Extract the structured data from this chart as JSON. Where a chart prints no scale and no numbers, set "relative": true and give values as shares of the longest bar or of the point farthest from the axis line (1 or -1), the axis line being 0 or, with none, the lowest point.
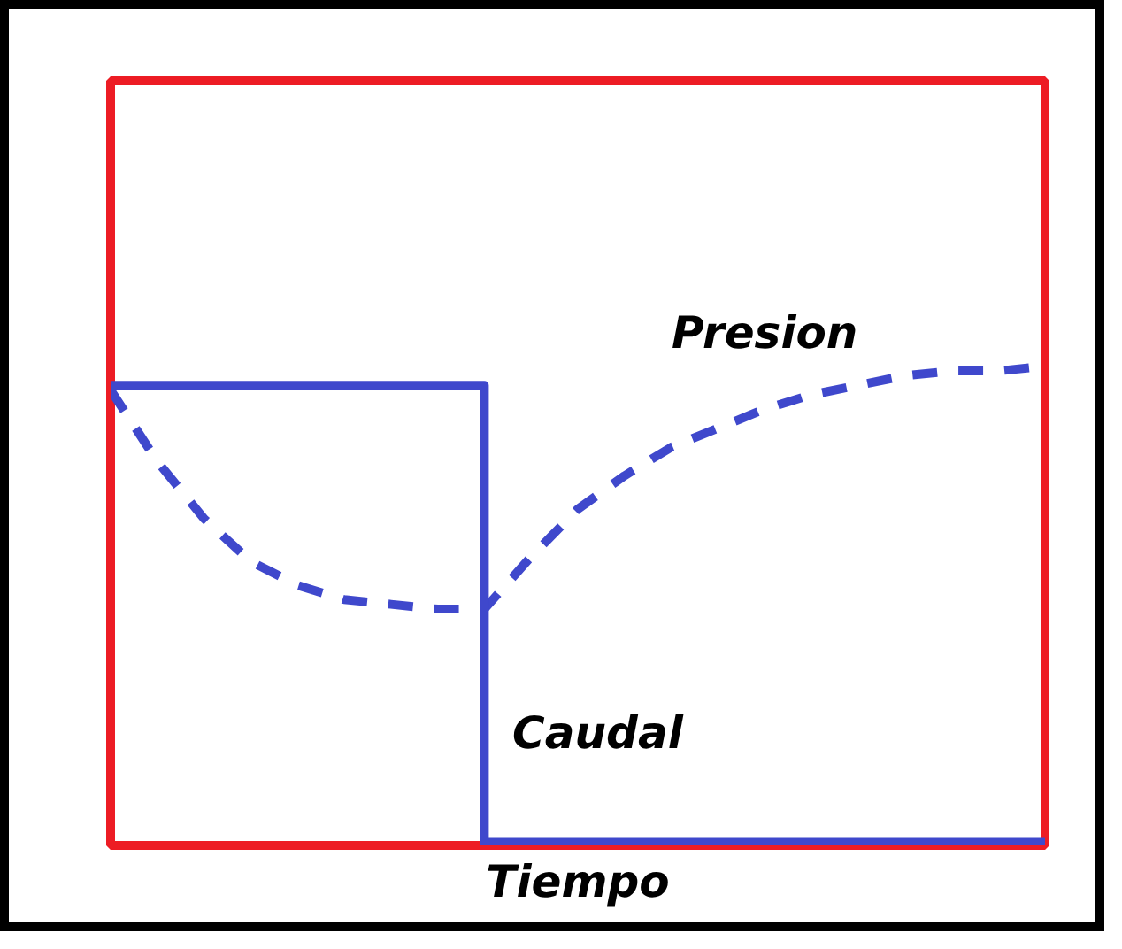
{
  "chart_data": {
    "type": "line",
    "relative": true,
    "xlabel": "Tiempo",
    "grid": false,
    "categories": [
      null,
      null,
      null,
      null,
      null,
      null,
      null,
      null,
      null,
      null,
      null,
      null,
      null,
      null,
      null,
      null,
      null,
      null,
      null,
      null,
      null
    ],
    "series": [
      {
        "name": "Presion",
        "color": "#3f48cc",
        "line_style": "dashed",
        "values": [
          0.95,
          0.8,
          0.68,
          0.59,
          0.54,
          0.51,
          0.5,
          0.49,
          0.49,
          0.6,
          0.7,
          0.77,
          0.83,
          0.87,
          0.91,
          0.94,
          0.96,
          0.98,
          0.99,
          0.99,
          1.0
        ]
      },
      {
        "name": "Caudal",
        "type": "step",
        "color": "#3f48cc",
        "line_style": "solid",
        "values": [
          0.96,
          0.96,
          0.96,
          0.96,
          0.96,
          0.96,
          0.96,
          0.96,
          0,
          0,
          0,
          0,
          0,
          0,
          0,
          0,
          0,
          0,
          0,
          0,
          0
        ]
      }
    ]
  }
}
